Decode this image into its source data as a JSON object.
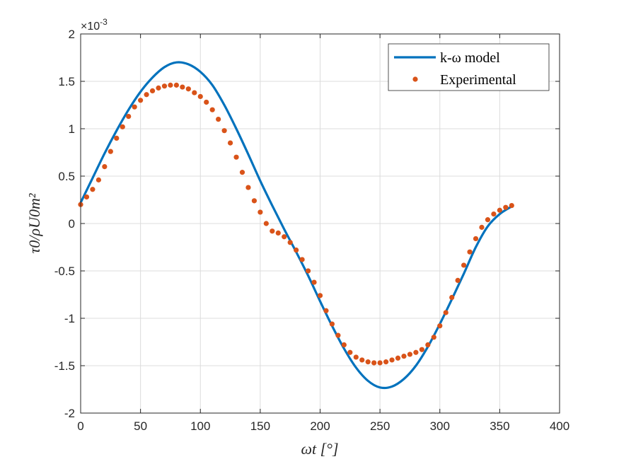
{
  "chart_data": {
    "type": "line",
    "xlabel": "ωt [°]",
    "ylabel": "τ0/ρU0m²",
    "xlim": [
      0,
      400
    ],
    "ylim": [
      -2,
      2
    ],
    "xticks": [
      "0",
      "50",
      "100",
      "150",
      "200",
      "250",
      "300",
      "350",
      "400"
    ],
    "yticks": [
      "-2",
      "-1.5",
      "-1",
      "-0.5",
      "0",
      "0.5",
      "1",
      "1.5",
      "2"
    ],
    "y_exponent_label": "×10",
    "y_exponent_power": "-3",
    "grid": true,
    "legend_position": "top-right",
    "series": [
      {
        "name": "k-ω model",
        "kind": "line",
        "color": "#0072BD",
        "x": [
          0,
          10,
          20,
          30,
          40,
          50,
          60,
          70,
          80,
          90,
          100,
          110,
          120,
          130,
          140,
          150,
          160,
          170,
          180,
          190,
          200,
          210,
          220,
          230,
          240,
          250,
          260,
          270,
          280,
          290,
          300,
          310,
          320,
          330,
          340,
          350,
          360
        ],
        "values": [
          0.22,
          0.48,
          0.74,
          0.98,
          1.2,
          1.39,
          1.54,
          1.65,
          1.7,
          1.68,
          1.6,
          1.46,
          1.25,
          1.0,
          0.73,
          0.45,
          0.19,
          -0.06,
          -0.3,
          -0.55,
          -0.82,
          -1.08,
          -1.32,
          -1.52,
          -1.66,
          -1.73,
          -1.72,
          -1.64,
          -1.5,
          -1.3,
          -1.06,
          -0.8,
          -0.53,
          -0.25,
          -0.03,
          0.1,
          0.18
        ]
      },
      {
        "name": "Experimental",
        "kind": "scatter",
        "color": "#D95319",
        "x": [
          0,
          5,
          10,
          15,
          20,
          25,
          30,
          35,
          40,
          45,
          50,
          55,
          60,
          65,
          70,
          75,
          80,
          85,
          90,
          95,
          100,
          105,
          110,
          115,
          120,
          125,
          130,
          135,
          140,
          145,
          150,
          155,
          160,
          165,
          170,
          175,
          180,
          185,
          190,
          195,
          200,
          205,
          210,
          215,
          220,
          225,
          230,
          235,
          240,
          245,
          250,
          255,
          260,
          265,
          270,
          275,
          280,
          285,
          290,
          295,
          300,
          305,
          310,
          315,
          320,
          325,
          330,
          335,
          340,
          345,
          350,
          355,
          360
        ],
        "values": [
          0.2,
          0.28,
          0.36,
          0.46,
          0.6,
          0.76,
          0.9,
          1.02,
          1.13,
          1.23,
          1.3,
          1.36,
          1.4,
          1.43,
          1.45,
          1.46,
          1.46,
          1.44,
          1.42,
          1.38,
          1.34,
          1.28,
          1.2,
          1.1,
          0.98,
          0.85,
          0.7,
          0.54,
          0.38,
          0.24,
          0.12,
          0.0,
          -0.08,
          -0.1,
          -0.14,
          -0.2,
          -0.28,
          -0.38,
          -0.5,
          -0.62,
          -0.76,
          -0.92,
          -1.06,
          -1.18,
          -1.28,
          -1.36,
          -1.41,
          -1.44,
          -1.46,
          -1.47,
          -1.47,
          -1.46,
          -1.44,
          -1.42,
          -1.4,
          -1.38,
          -1.36,
          -1.33,
          -1.28,
          -1.2,
          -1.08,
          -0.94,
          -0.78,
          -0.6,
          -0.44,
          -0.3,
          -0.16,
          -0.04,
          0.04,
          0.1,
          0.14,
          0.17,
          0.19
        ]
      }
    ]
  }
}
